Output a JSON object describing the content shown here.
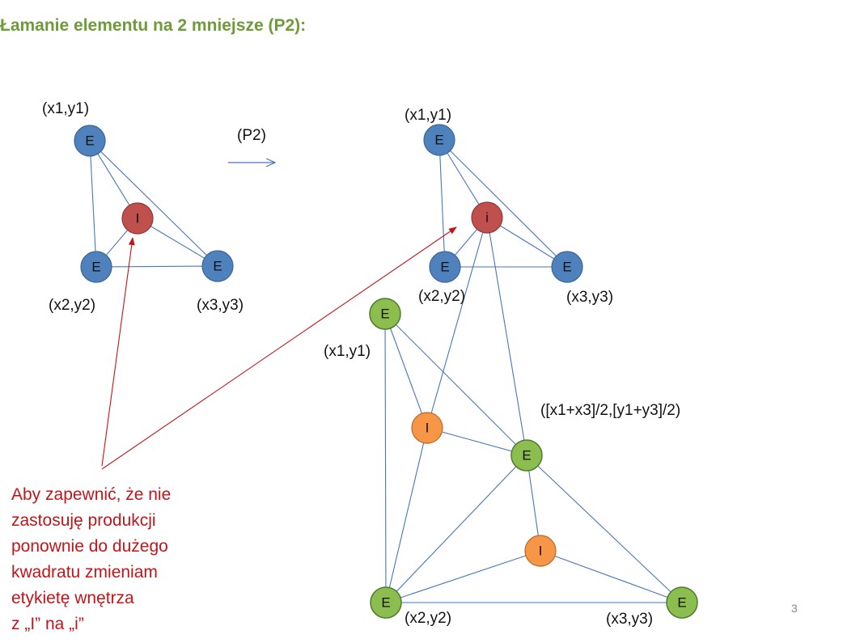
{
  "title": "Łamanie elementu na 2 mniejsze (P2):",
  "colors": {
    "title": "#6e9b3a",
    "node_E_blue": "#4f81bd",
    "node_I_red": "#c0504d",
    "node_E_green": "#8bbe4e",
    "node_I_orange": "#f79646",
    "edge": "#4a76b8",
    "annotation": "#c0161b"
  },
  "left_graph": {
    "nodes": {
      "top": "E",
      "interior": "I",
      "bottom_left": "E",
      "bottom_right": "E"
    },
    "labels": {
      "top": "(x1,y1)",
      "bottom_left": "(x2,y2)",
      "bottom_right": "(x3,y3)"
    }
  },
  "production": {
    "label": "(P2)"
  },
  "right_top_graph": {
    "nodes": {
      "top": "E",
      "interior": "i",
      "bottom_left": "E",
      "bottom_right": "E"
    },
    "labels": {
      "top": "(x1,y1)",
      "bottom_left": "(x2,y2)",
      "bottom_right": "(x3,y3)"
    }
  },
  "new_graph": {
    "nodes": {
      "top": "E",
      "interior_upper": "I",
      "middle": "E",
      "interior_lower": "I",
      "bottom_left": "E",
      "bottom_right": "E"
    },
    "labels": {
      "top": "(x1,y1)",
      "middle": "([x1+x3]/2,[y1+y3]/2)",
      "bottom_left": "(x2,y2)",
      "bottom_right": "(x3,y3)"
    }
  },
  "annotation": "Aby zapewnić, że nie\nzastosuję produkcji\nponownie do dużego\nkwadratu zmieniam\netykietę wnętrza\nz „I” na „i”",
  "page_number": "3"
}
